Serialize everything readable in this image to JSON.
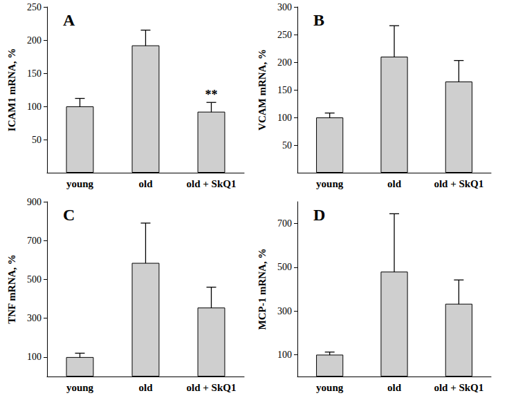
{
  "chart_data": [
    {
      "type": "bar",
      "title": "A",
      "ylabel": "ICAM1 mRNA, %",
      "categories": [
        "young",
        "old",
        "old + SkQ1"
      ],
      "values": [
        100,
        192,
        92
      ],
      "errors": [
        12,
        23,
        14
      ],
      "color": "#cfcfcf",
      "ylim": [
        0,
        250
      ],
      "yticks": [
        50,
        100,
        150,
        200,
        250
      ],
      "grid": false,
      "annotations": [
        {
          "category": "old + SkQ1",
          "text": "**"
        }
      ]
    },
    {
      "type": "bar",
      "title": "B",
      "ylabel": "VCAM mRNA, %",
      "categories": [
        "young",
        "old",
        "old + SkQ1"
      ],
      "values": [
        100,
        210,
        165
      ],
      "errors": [
        8,
        56,
        38
      ],
      "color": "#cfcfcf",
      "ylim": [
        0,
        300
      ],
      "yticks": [
        50,
        100,
        150,
        200,
        250,
        300
      ],
      "grid": false
    },
    {
      "type": "bar",
      "title": "C",
      "ylabel": "TNF mRNA, %",
      "categories": [
        "young",
        "old",
        "old + SkQ1"
      ],
      "values": [
        100,
        585,
        355
      ],
      "errors": [
        20,
        205,
        105
      ],
      "color": "#cfcfcf",
      "ylim": [
        0,
        900
      ],
      "yticks": [
        100,
        300,
        500,
        700,
        900
      ],
      "grid": false
    },
    {
      "type": "bar",
      "title": "D",
      "ylabel": "MCP-1 mRNA, %",
      "categories": [
        "young",
        "old",
        "old + SkQ1"
      ],
      "values": [
        100,
        480,
        333
      ],
      "errors": [
        12,
        265,
        109
      ],
      "color": "#cfcfcf",
      "ylim": [
        0,
        800
      ],
      "yticks": [
        100,
        300,
        500,
        700
      ],
      "grid": false
    }
  ]
}
